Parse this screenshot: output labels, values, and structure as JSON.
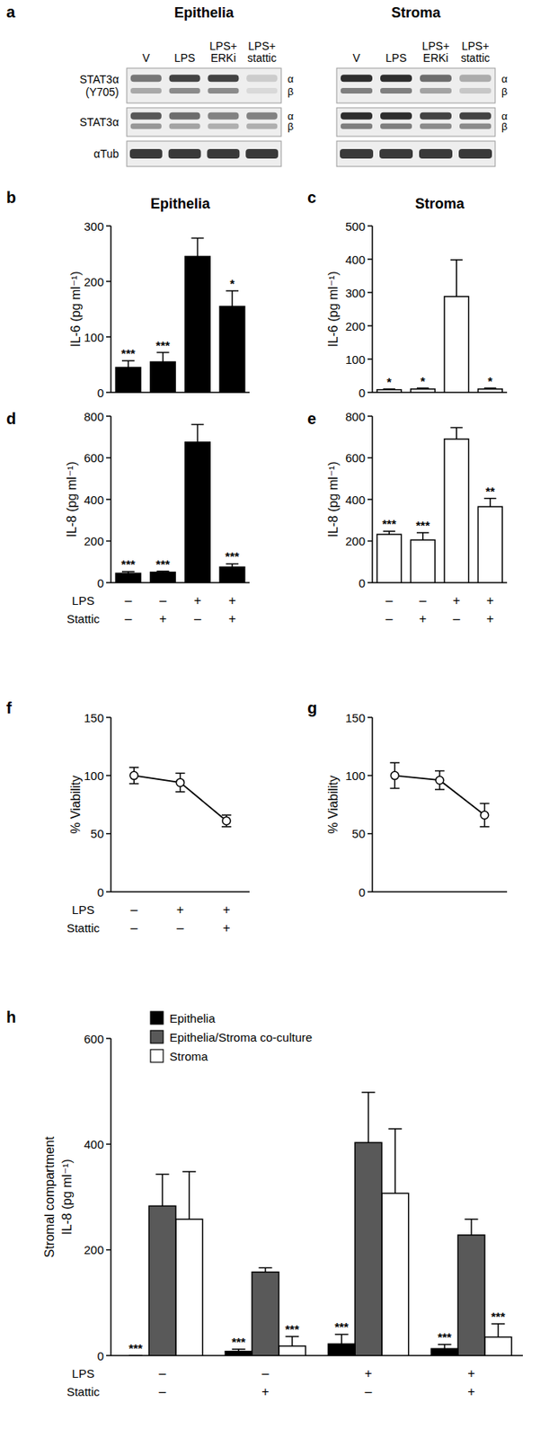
{
  "blot": {
    "panel": "a",
    "rows": [
      {
        "label": "STAT3α (Y705)",
        "isoforms": [
          "α",
          "β"
        ]
      },
      {
        "label": "STAT3α",
        "isoforms": [
          "α",
          "β"
        ]
      },
      {
        "label": "αTub"
      }
    ],
    "groups": [
      {
        "title": "Epithelia",
        "lanes": [
          "V",
          "LPS",
          "LPS+ ERKi",
          "LPS+ stattic"
        ],
        "intensity": [
          [
            0.55,
            0.8,
            0.8,
            0.15
          ],
          [
            0.7,
            0.6,
            0.5,
            0.5
          ],
          [
            0.85,
            0.85,
            0.85,
            0.85
          ]
        ]
      },
      {
        "title": "Stroma",
        "lanes": [
          "V",
          "LPS",
          "LPS+ ERKi",
          "LPS+ stattic"
        ],
        "intensity": [
          [
            0.9,
            0.9,
            0.6,
            0.3
          ],
          [
            0.9,
            0.9,
            0.8,
            0.8
          ],
          [
            0.85,
            0.85,
            0.85,
            0.85
          ]
        ]
      }
    ]
  },
  "chart_data": [
    {
      "type": "bar",
      "panel": "b",
      "title": "Epithelia",
      "y_label": "IL-6 (pg ml⁻¹)",
      "categories": [
        null,
        null,
        null,
        null
      ],
      "ylim": [
        0,
        300
      ],
      "yticks": [
        0,
        100,
        200,
        300
      ],
      "series": [
        {
          "color": "#000000",
          "values": [
            45,
            55,
            245,
            155
          ],
          "errors": [
            12,
            17,
            33,
            28
          ],
          "significance": [
            "***",
            "***",
            null,
            "*"
          ]
        }
      ]
    },
    {
      "type": "bar",
      "panel": "c",
      "title": "Stroma",
      "y_label": "IL-6 (pg ml⁻¹)",
      "categories": [
        null,
        null,
        null,
        null
      ],
      "ylim": [
        0,
        500
      ],
      "yticks": [
        0,
        100,
        200,
        300,
        400,
        500
      ],
      "series": [
        {
          "color": "#ffffff",
          "values": [
            8,
            10,
            288,
            10
          ],
          "errors": [
            2,
            3,
            110,
            3
          ],
          "significance": [
            "*",
            "*",
            null,
            "*"
          ]
        }
      ]
    },
    {
      "type": "bar",
      "panel": "d",
      "y_label": "IL-8 (pg ml⁻¹)",
      "categories": [
        null,
        null,
        null,
        null
      ],
      "ylim": [
        0,
        800
      ],
      "yticks": [
        0,
        200,
        400,
        600,
        800
      ],
      "x_rows": [
        {
          "name": "LPS",
          "labels": [
            "–",
            "–",
            "+",
            "+"
          ]
        },
        {
          "name": "Stattic",
          "labels": [
            "–",
            "+",
            "–",
            "+"
          ]
        }
      ],
      "series": [
        {
          "color": "#000000",
          "values": [
            45,
            50,
            675,
            75
          ],
          "errors": [
            8,
            5,
            85,
            15
          ],
          "significance": [
            "***",
            "***",
            null,
            "***"
          ]
        }
      ]
    },
    {
      "type": "bar",
      "panel": "e",
      "y_label": "IL-8 (pg ml⁻¹)",
      "categories": [
        null,
        null,
        null,
        null
      ],
      "ylim": [
        0,
        800
      ],
      "yticks": [
        0,
        200,
        400,
        600,
        800
      ],
      "x_rows": [
        {
          "labels": [
            "–",
            "–",
            "+",
            "+"
          ]
        },
        {
          "labels": [
            "–",
            "+",
            "–",
            "+"
          ]
        }
      ],
      "series": [
        {
          "color": "#ffffff",
          "values": [
            232,
            205,
            690,
            365
          ],
          "errors": [
            15,
            35,
            55,
            40
          ],
          "significance": [
            "***",
            "***",
            null,
            "**"
          ]
        }
      ]
    },
    {
      "type": "line",
      "panel": "f",
      "y_label": "% Viability",
      "categories": [
        null,
        null,
        null
      ],
      "ylim": [
        0,
        150
      ],
      "yticks": [
        0,
        50,
        100,
        150
      ],
      "marker": "circle",
      "x_rows": [
        {
          "name": "LPS",
          "labels": [
            "–",
            "+",
            "+"
          ]
        },
        {
          "name": "Stattic",
          "labels": [
            "–",
            "–",
            "+"
          ]
        }
      ],
      "series": [
        {
          "color": "#000000",
          "values": [
            100,
            94,
            61
          ],
          "errors": [
            7,
            8,
            5
          ]
        }
      ]
    },
    {
      "type": "line",
      "panel": "g",
      "y_label": "% Viability",
      "categories": [
        null,
        null,
        null
      ],
      "ylim": [
        0,
        150
      ],
      "yticks": [
        0,
        50,
        100,
        150
      ],
      "marker": "circle",
      "series": [
        {
          "color": "#000000",
          "values": [
            100,
            96,
            66
          ],
          "errors": [
            11,
            8,
            10
          ]
        }
      ]
    },
    {
      "type": "bar",
      "panel": "h",
      "y_label": [
        "Stromal compartment",
        "IL-8 (pg ml⁻¹)"
      ],
      "categories": [
        null,
        null,
        null,
        null
      ],
      "ylim": [
        0,
        600
      ],
      "yticks": [
        0,
        200,
        400,
        600
      ],
      "legend": "top-left",
      "x_rows": [
        {
          "name": "LPS",
          "labels": [
            "–",
            "–",
            "+",
            "+"
          ]
        },
        {
          "name": "Stattic",
          "labels": [
            "–",
            "+",
            "–",
            "+"
          ]
        }
      ],
      "series": [
        {
          "name": "Epithelia",
          "color": "#000000",
          "values": [
            0,
            8,
            22,
            13
          ],
          "errors": [
            0,
            4,
            18,
            8
          ],
          "significance": [
            "***",
            "***",
            "***",
            "***"
          ]
        },
        {
          "name": "Epithelia/Stroma co-culture",
          "color": "#595959",
          "values": [
            283,
            158,
            403,
            228
          ],
          "errors": [
            60,
            8,
            95,
            30
          ],
          "significance": [
            null,
            null,
            null,
            null
          ]
        },
        {
          "name": "Stroma",
          "color": "#ffffff",
          "values": [
            258,
            18,
            307,
            35
          ],
          "errors": [
            90,
            18,
            122,
            25
          ],
          "significance": [
            null,
            "***",
            null,
            "***"
          ]
        }
      ]
    }
  ]
}
